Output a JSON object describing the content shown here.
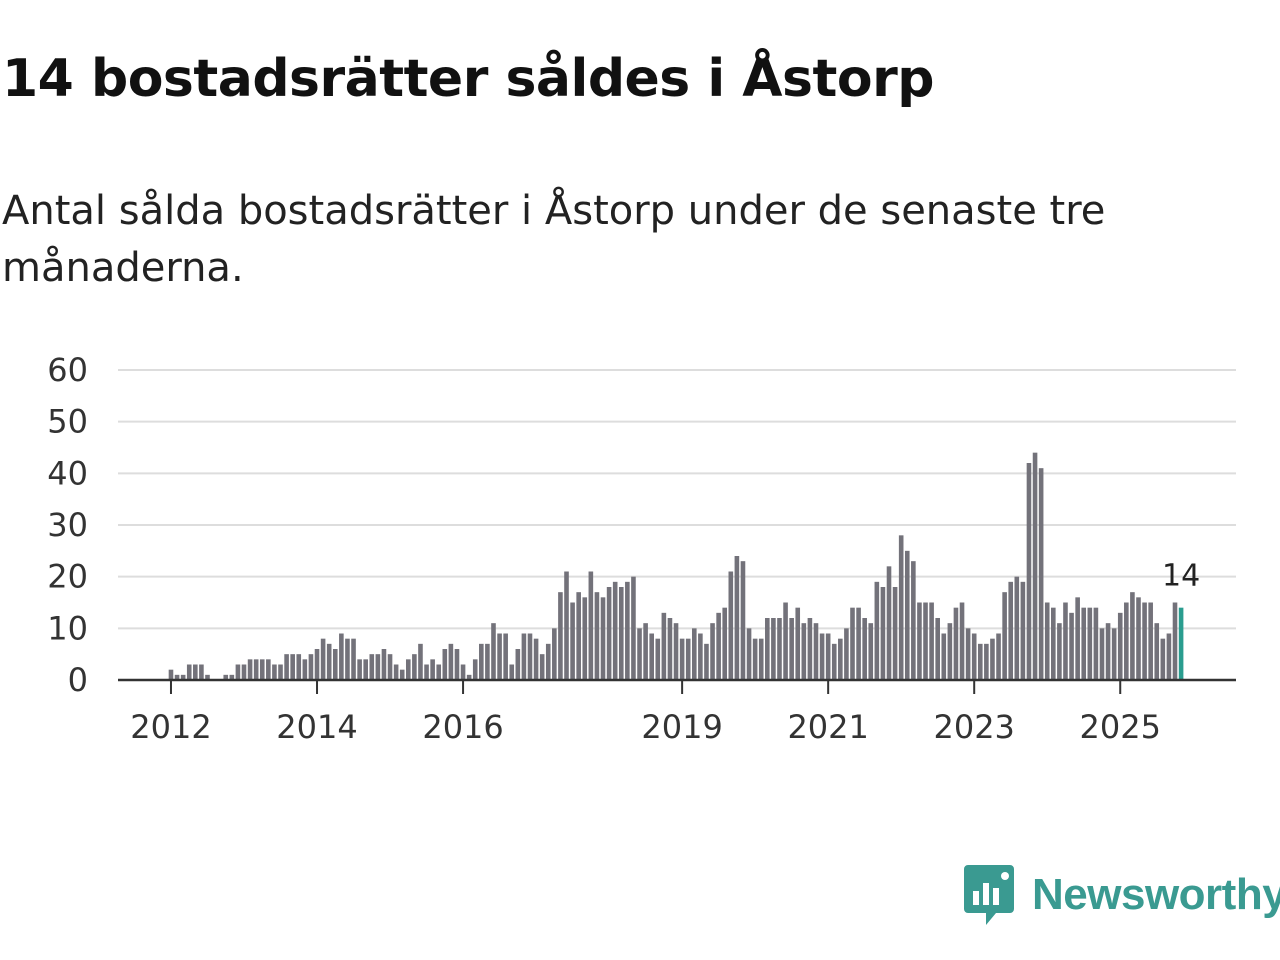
{
  "header": {
    "title": "14 bostadsrätter såldes i Åstorp",
    "subtitle": "Antal sålda bostadsrätter i Åstorp under de senaste tre månaderna."
  },
  "brand": {
    "name": "Newsworthy",
    "color": "#3a9a91"
  },
  "colors": {
    "bar": "#73727a",
    "highlight": "#2a9d8f",
    "grid": "#dddddd",
    "axis": "#333333"
  },
  "chart_data": {
    "type": "bar",
    "title": "Antal sålda bostadsrätter i Åstorp",
    "xlabel": "",
    "ylabel": "",
    "ylim": [
      0,
      60
    ],
    "yticks": [
      0,
      10,
      20,
      30,
      40,
      50,
      60
    ],
    "start": "2011-05",
    "xtick_labels": [
      {
        "label": "2012",
        "index": 8
      },
      {
        "label": "2014",
        "index": 32
      },
      {
        "label": "2016",
        "index": 56
      },
      {
        "label": "2019",
        "index": 92
      },
      {
        "label": "2021",
        "index": 116
      },
      {
        "label": "2023",
        "index": 140
      },
      {
        "label": "2025",
        "index": 164
      }
    ],
    "values": [
      0,
      0,
      0,
      0,
      0,
      0,
      0,
      0,
      2,
      1,
      1,
      3,
      3,
      3,
      1,
      0,
      0,
      1,
      1,
      3,
      3,
      4,
      4,
      4,
      4,
      3,
      3,
      5,
      5,
      5,
      4,
      5,
      6,
      8,
      7,
      6,
      9,
      8,
      8,
      4,
      4,
      5,
      5,
      6,
      5,
      3,
      2,
      4,
      5,
      7,
      3,
      4,
      3,
      6,
      7,
      6,
      3,
      1,
      4,
      7,
      7,
      11,
      9,
      9,
      3,
      6,
      9,
      9,
      8,
      5,
      7,
      10,
      17,
      21,
      15,
      17,
      16,
      21,
      17,
      16,
      18,
      19,
      18,
      19,
      20,
      10,
      11,
      9,
      8,
      13,
      12,
      11,
      8,
      8,
      10,
      9,
      7,
      11,
      13,
      14,
      21,
      24,
      23,
      10,
      8,
      8,
      12,
      12,
      12,
      15,
      12,
      14,
      11,
      12,
      11,
      9,
      9,
      7,
      8,
      10,
      14,
      14,
      12,
      11,
      19,
      18,
      22,
      18,
      28,
      25,
      23,
      15,
      15,
      15,
      12,
      9,
      11,
      14,
      15,
      10,
      9,
      7,
      7,
      8,
      9,
      17,
      19,
      20,
      19,
      42,
      44,
      41,
      15,
      14,
      11,
      15,
      13,
      16,
      14,
      14,
      14,
      10,
      11,
      10,
      13,
      15,
      17,
      16,
      15,
      15,
      11,
      8,
      9,
      15,
      14
    ],
    "highlight_index": 174,
    "annotation": "14"
  }
}
